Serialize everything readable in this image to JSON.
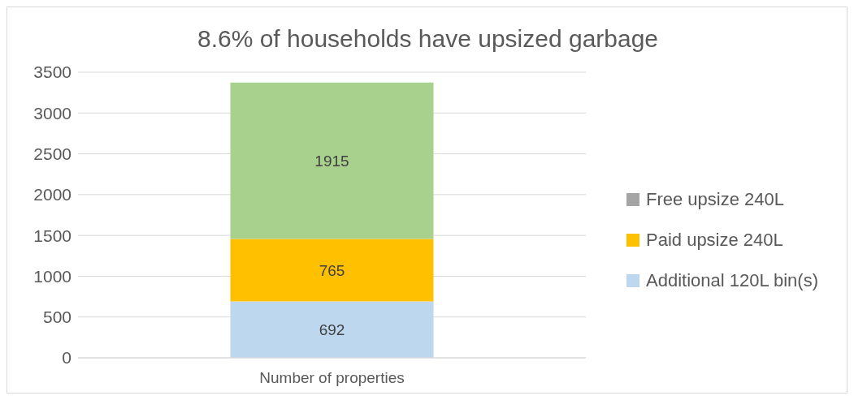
{
  "chart_data": {
    "type": "bar",
    "title": "8.6% of households have upsized garbage",
    "categories": [
      "Number of properties"
    ],
    "series": [
      {
        "name": "Additional 120L bin(s)",
        "color": "#bdd7ee",
        "values": [
          692
        ]
      },
      {
        "name": "Paid upsize 240L",
        "color": "#ffc000",
        "values": [
          765
        ]
      },
      {
        "name": "Free upsize 240L",
        "color": "#a5a5a5",
        "values": [
          null
        ]
      },
      {
        "color": "#a9d18e",
        "values": [
          1915
        ]
      }
    ],
    "stacked": true,
    "data_labels": true,
    "ylim": [
      0,
      3500
    ],
    "yticks": [
      0,
      500,
      1000,
      1500,
      2000,
      2500,
      3000,
      3500
    ],
    "grid": "y",
    "legend": "right"
  }
}
